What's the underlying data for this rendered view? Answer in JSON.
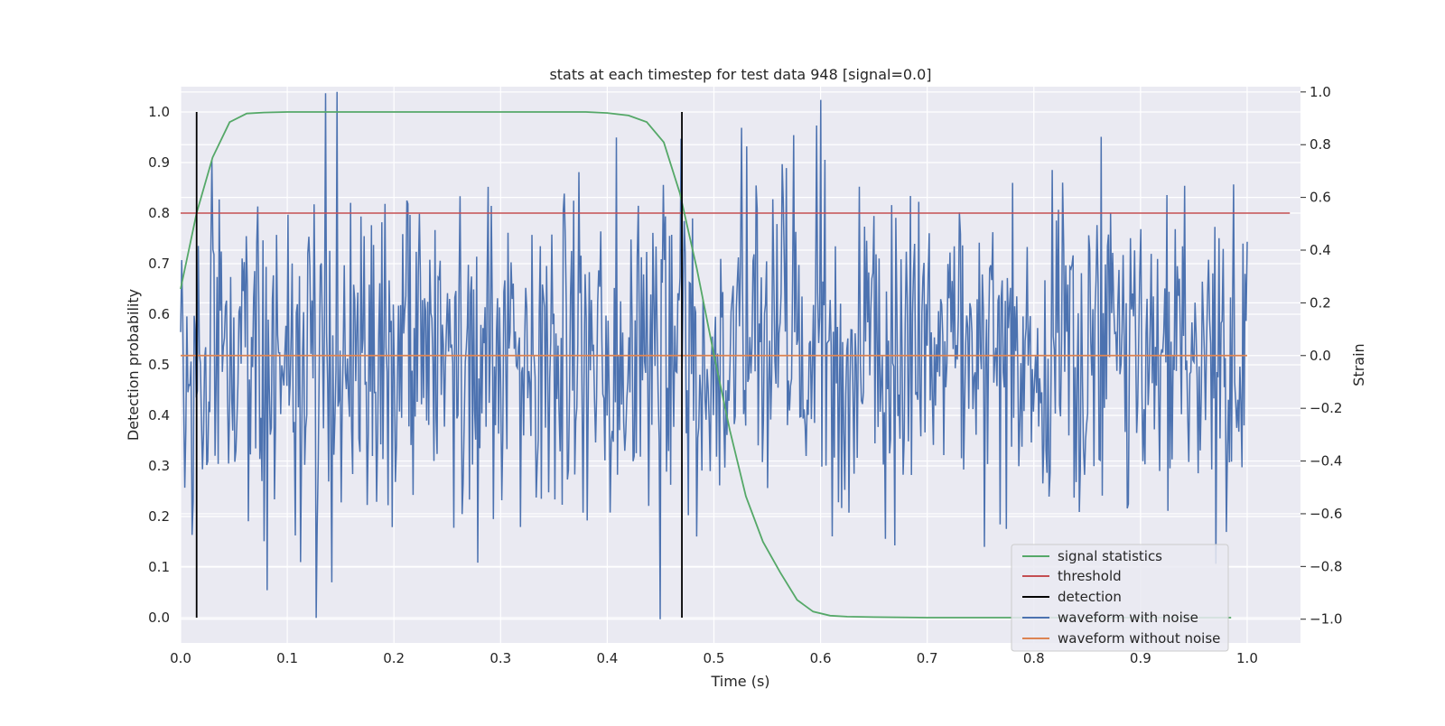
{
  "chart_data": {
    "type": "line",
    "title": "stats at each timestep for test data 948 [signal=0.0]",
    "xlabel": "Time (s)",
    "ylabel_left": "Detection probability",
    "ylabel_right": "Strain",
    "xlim": [
      0.0,
      1.05
    ],
    "ylim_left": [
      -0.05,
      1.05
    ],
    "ylim_right": [
      -1.09,
      1.02
    ],
    "x_ticks": [
      "0.0",
      "0.1",
      "0.2",
      "0.3",
      "0.4",
      "0.5",
      "0.6",
      "0.7",
      "0.8",
      "0.9",
      "1.0"
    ],
    "y_left_ticks": [
      "0.0",
      "0.1",
      "0.2",
      "0.3",
      "0.4",
      "0.5",
      "0.6",
      "0.7",
      "0.8",
      "0.9",
      "1.0"
    ],
    "y_right_ticks": [
      "−1.0",
      "−0.8",
      "−0.6",
      "−0.4",
      "−0.2",
      "0.0",
      "0.2",
      "0.4",
      "0.6",
      "0.8",
      "1.0"
    ],
    "grid": true,
    "legend_position": "bottom-right",
    "colors": {
      "signal": "#55a868",
      "threshold": "#c44e52",
      "detection": "#000000",
      "noisy": "#4c72b0",
      "clean": "#dd8452",
      "plot_bg": "#eaeaf2",
      "grid": "#ffffff"
    },
    "series": [
      {
        "name": "signal statistics",
        "axis": "left",
        "x": [
          0.0,
          0.015,
          0.03,
          0.046,
          0.062,
          0.078,
          0.1,
          0.15,
          0.2,
          0.3,
          0.38,
          0.4,
          0.42,
          0.437,
          0.453,
          0.468,
          0.484,
          0.5,
          0.515,
          0.53,
          0.546,
          0.562,
          0.578,
          0.593,
          0.609,
          0.625,
          0.65,
          0.7,
          0.8,
          0.9,
          0.985
        ],
        "y": [
          0.65,
          0.8,
          0.91,
          0.98,
          0.997,
          0.999,
          1.0,
          1.0,
          1.0,
          1.0,
          1.0,
          0.998,
          0.993,
          0.98,
          0.94,
          0.84,
          0.69,
          0.52,
          0.37,
          0.24,
          0.15,
          0.09,
          0.035,
          0.012,
          0.004,
          0.002,
          0.001,
          0.0,
          0.0,
          0.0,
          0.0
        ]
      },
      {
        "name": "threshold",
        "axis": "left",
        "x": [
          0.0,
          1.04
        ],
        "y": [
          0.8,
          0.8
        ]
      },
      {
        "name": "detection",
        "axis": "left",
        "segments": [
          {
            "x": 0.015,
            "y": [
              0.0,
              1.0
            ]
          },
          {
            "x": 0.47,
            "y": [
              0.0,
              1.0
            ]
          }
        ]
      },
      {
        "name": "waveform with noise",
        "axis": "right",
        "x_range": [
          0.0,
          1.0
        ],
        "n_points": 1024,
        "seed": 948,
        "sigma": 0.32,
        "clip": [
          -1.0,
          1.0
        ],
        "notable_points": [
          {
            "x": 0.147,
            "y": 1.0
          },
          {
            "x": 0.45,
            "y": -1.0
          },
          {
            "x": 0.6,
            "y": 0.97
          },
          {
            "x": 0.081,
            "y": -0.89
          },
          {
            "x": 0.863,
            "y": 0.83
          },
          {
            "x": 0.142,
            "y": -0.86
          },
          {
            "x": 0.998,
            "y": 0.31
          }
        ]
      },
      {
        "name": "waveform without noise",
        "axis": "right",
        "x": [
          0.0,
          1.0
        ],
        "y": [
          0.0,
          0.0
        ]
      }
    ]
  }
}
